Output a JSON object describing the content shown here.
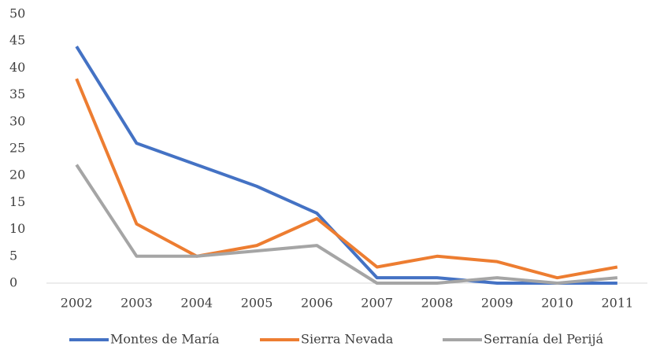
{
  "chart_data": {
    "type": "line",
    "categories": [
      "2002",
      "2003",
      "2004",
      "2005",
      "2006",
      "2007",
      "2008",
      "2009",
      "2010",
      "2011"
    ],
    "series": [
      {
        "name": "Montes de María",
        "color": "#4472c4",
        "values": [
          44,
          26,
          22,
          18,
          13,
          1,
          1,
          0,
          0,
          0
        ]
      },
      {
        "name": "Sierra Nevada",
        "color": "#ed7d31",
        "values": [
          38,
          11,
          5,
          7,
          12,
          3,
          5,
          4,
          1,
          3
        ]
      },
      {
        "name": "Serranía del Perijá",
        "color": "#a5a5a5",
        "values": [
          22,
          5,
          5,
          6,
          7,
          0,
          0,
          1,
          0,
          1
        ]
      }
    ],
    "ylim": [
      0,
      50
    ],
    "yticks": [
      0,
      5,
      10,
      15,
      20,
      25,
      30,
      35,
      40,
      45,
      50
    ],
    "grid": false,
    "legend": "bottom"
  }
}
